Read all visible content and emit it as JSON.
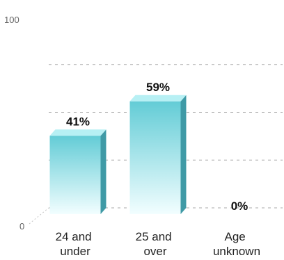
{
  "chart_data": {
    "type": "bar",
    "categories": [
      "24 and under",
      "25 and over",
      "Age unknown"
    ],
    "category_lines": [
      [
        "24 and",
        "under"
      ],
      [
        "25 and",
        "over"
      ],
      [
        "Age",
        "unknown"
      ]
    ],
    "values": [
      41,
      59,
      0
    ],
    "data_labels": [
      "41%",
      "59%",
      "0%"
    ],
    "ylim": [
      0,
      100
    ],
    "yticks": [
      "0",
      "100"
    ],
    "grid": true,
    "title": "",
    "xlabel": "",
    "ylabel": "",
    "colors": {
      "bar_top": "#63ccd6",
      "bar_bottom": "#f2feff",
      "bar_cap": "#b7f0f4",
      "bar_side": "#3f9aa6",
      "grid": "#a8a8a8"
    }
  }
}
